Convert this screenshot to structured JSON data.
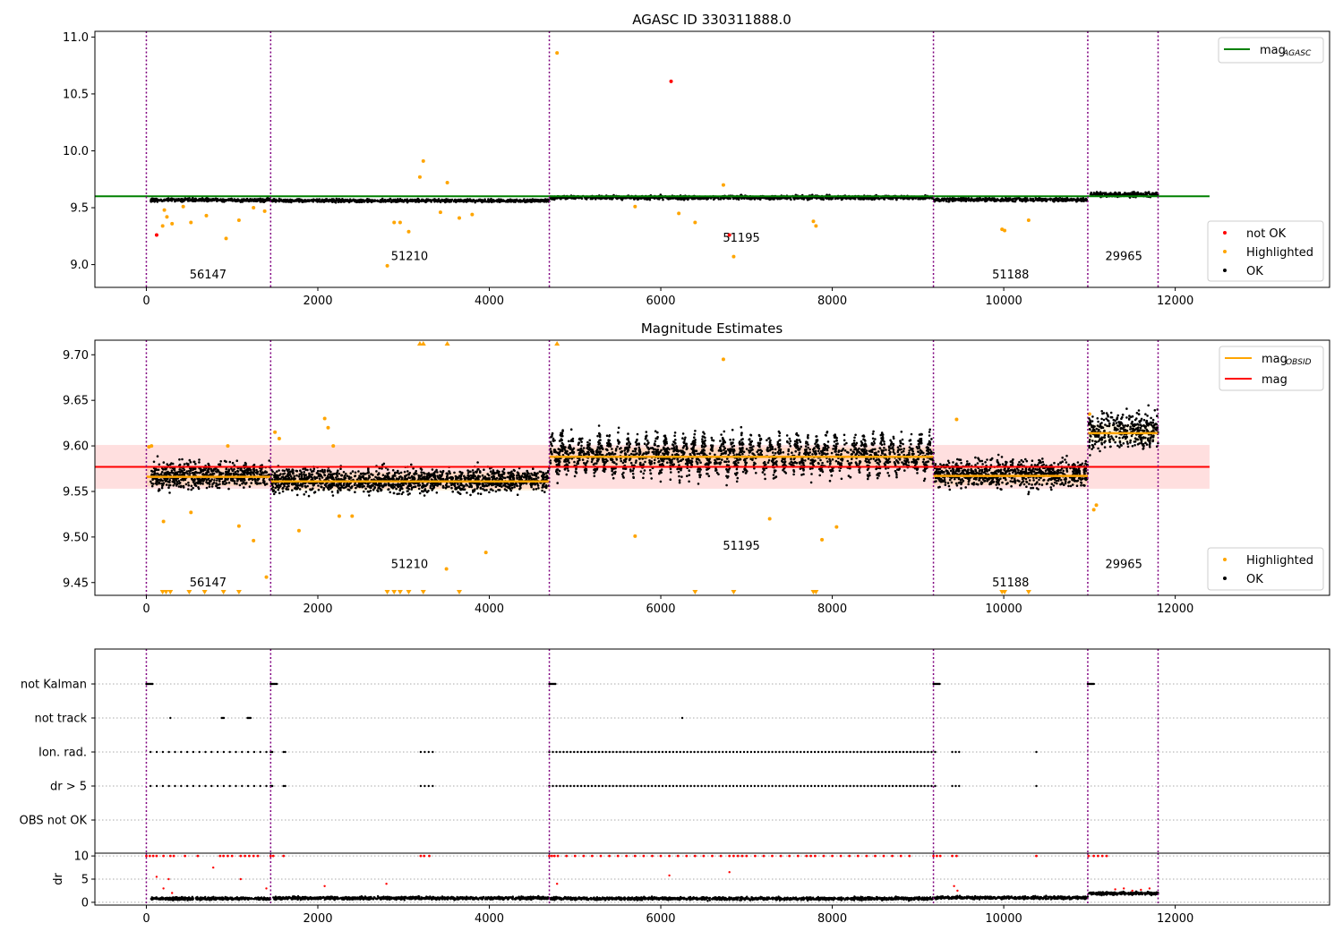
{
  "figure_title": "AGASC ID 330311888.0",
  "chart_data": [
    {
      "type": "scatter",
      "title": "",
      "xlim": [
        -600,
        13800
      ],
      "ylim": [
        8.8,
        11.05
      ],
      "xticks": [
        0,
        2000,
        4000,
        6000,
        8000,
        10000,
        12000
      ],
      "yticks": [
        9.0,
        9.5,
        10.0,
        10.5,
        11.0
      ],
      "ytick_labels": [
        "9.0",
        "9.5",
        "10.0",
        "10.5",
        "11.0"
      ],
      "obsid_boundaries": [
        0,
        1450,
        4700,
        9180,
        10980,
        11800
      ],
      "obsid_labels": [
        {
          "label": "56147",
          "x": 720,
          "y": 8.88
        },
        {
          "label": "51210",
          "x": 3070,
          "y": 9.04
        },
        {
          "label": "51195",
          "x": 6940,
          "y": 9.2
        },
        {
          "label": "51188",
          "x": 10080,
          "y": 8.88
        },
        {
          "label": "29965",
          "x": 11400,
          "y": 9.04
        }
      ],
      "mag_agasc": {
        "value": 9.6,
        "x": [
          -600,
          12400
        ],
        "color": "#008000"
      },
      "series": [
        {
          "name": "not OK",
          "color": "#ff0000",
          "points": [
            [
              120,
              9.26
            ],
            [
              6120,
              10.61
            ],
            [
              6800,
              9.26
            ]
          ]
        },
        {
          "name": "Highlighted",
          "color": "#ffa500",
          "points": [
            [
              190,
              9.34
            ],
            [
              210,
              9.48
            ],
            [
              240,
              9.42
            ],
            [
              300,
              9.36
            ],
            [
              430,
              9.51
            ],
            [
              520,
              9.37
            ],
            [
              700,
              9.43
            ],
            [
              930,
              9.23
            ],
            [
              1080,
              9.39
            ],
            [
              1250,
              9.5
            ],
            [
              1380,
              9.47
            ],
            [
              2810,
              8.99
            ],
            [
              2890,
              9.37
            ],
            [
              2960,
              9.37
            ],
            [
              3060,
              9.29
            ],
            [
              3190,
              9.77
            ],
            [
              3230,
              9.91
            ],
            [
              3430,
              9.46
            ],
            [
              3510,
              9.72
            ],
            [
              3650,
              9.41
            ],
            [
              3800,
              9.44
            ],
            [
              4790,
              10.86
            ],
            [
              5700,
              9.51
            ],
            [
              6210,
              9.45
            ],
            [
              6400,
              9.37
            ],
            [
              6730,
              9.7
            ],
            [
              6850,
              9.07
            ],
            [
              7780,
              9.38
            ],
            [
              7810,
              9.34
            ],
            [
              9980,
              9.31
            ],
            [
              10010,
              9.3
            ],
            [
              10290,
              9.39
            ]
          ]
        },
        {
          "name": "OK",
          "color": "#000000",
          "segments": [
            {
              "x": [
                50,
                1450
              ],
              "mean": 9.568,
              "spread": 0.014
            },
            {
              "x": [
                1460,
                4700
              ],
              "mean": 9.562,
              "spread": 0.013
            },
            {
              "x": [
                4710,
                9180
              ],
              "mean": 9.59,
              "spread": 0.016
            },
            {
              "x": [
                9190,
                10980
              ],
              "mean": 9.57,
              "spread": 0.015
            },
            {
              "x": [
                10990,
                11800
              ],
              "mean": 9.617,
              "spread": 0.02
            }
          ]
        }
      ],
      "legends": [
        {
          "placement": "top-right",
          "entries": [
            {
              "label": "mag",
              "sub": "AGASC",
              "marker": "line",
              "color": "#008000"
            }
          ]
        },
        {
          "placement": "lower-right",
          "entries": [
            {
              "label": "not OK",
              "marker": "dot",
              "color": "#ff0000"
            },
            {
              "label": "Highlighted",
              "marker": "dot",
              "color": "#ffa500"
            },
            {
              "label": "OK",
              "marker": "dot",
              "color": "#000000"
            }
          ]
        }
      ]
    },
    {
      "type": "scatter",
      "title": "Magnitude Estimates",
      "xlim": [
        -600,
        13800
      ],
      "ylim": [
        9.436,
        9.716
      ],
      "xticks": [
        0,
        2000,
        4000,
        6000,
        8000,
        10000,
        12000
      ],
      "yticks": [
        9.45,
        9.5,
        9.55,
        9.6,
        9.65,
        9.7
      ],
      "ytick_labels": [
        "9.45",
        "9.50",
        "9.55",
        "9.60",
        "9.65",
        "9.70"
      ],
      "obsid_boundaries": [
        0,
        1450,
        4700,
        9180,
        10980,
        11800
      ],
      "obsid_labels": [
        {
          "label": "56147",
          "x": 720,
          "y": 9.446
        },
        {
          "label": "51210",
          "x": 3070,
          "y": 9.466
        },
        {
          "label": "51195",
          "x": 6940,
          "y": 9.486
        },
        {
          "label": "51188",
          "x": 10080,
          "y": 9.446
        },
        {
          "label": "29965",
          "x": 11400,
          "y": 9.466
        }
      ],
      "mag": {
        "value": 9.577,
        "band": [
          9.553,
          9.601
        ],
        "x": [
          -600,
          12400
        ],
        "color": "#ff0000",
        "band_color": "#ffd7d7"
      },
      "mag_obsid": [
        {
          "x": [
            0,
            1450
          ],
          "value": 9.566
        },
        {
          "x": [
            1450,
            4700
          ],
          "value": 9.561
        },
        {
          "x": [
            4700,
            9180
          ],
          "value": 9.588
        },
        {
          "x": [
            9180,
            10980
          ],
          "value": 9.567
        },
        {
          "x": [
            10980,
            11800
          ],
          "value": 9.614
        }
      ],
      "series": [
        {
          "name": "Highlighted",
          "color": "#ffa500",
          "points": [
            [
              30,
              9.599
            ],
            [
              60,
              9.6
            ],
            [
              200,
              9.517
            ],
            [
              520,
              9.527
            ],
            [
              950,
              9.6
            ],
            [
              1080,
              9.512
            ],
            [
              1250,
              9.496
            ],
            [
              1400,
              9.456
            ],
            [
              1500,
              9.615
            ],
            [
              1550,
              9.608
            ],
            [
              1780,
              9.507
            ],
            [
              2080,
              9.63
            ],
            [
              2120,
              9.62
            ],
            [
              2180,
              9.6
            ],
            [
              2250,
              9.523
            ],
            [
              2400,
              9.523
            ],
            [
              3500,
              9.465
            ],
            [
              3960,
              9.483
            ],
            [
              5700,
              9.501
            ],
            [
              6730,
              9.695
            ],
            [
              7270,
              9.52
            ],
            [
              7880,
              9.497
            ],
            [
              8050,
              9.511
            ],
            [
              9450,
              9.629
            ],
            [
              11000,
              9.635
            ],
            [
              11050,
              9.53
            ],
            [
              11080,
              9.535
            ]
          ],
          "below_axis": [
            190,
            230,
            280,
            500,
            680,
            900,
            1080,
            2810,
            2890,
            2960,
            3060,
            3230,
            3650,
            6400,
            6850,
            7780,
            7810,
            9980,
            10010,
            10290
          ],
          "above_axis": [
            3190,
            3230,
            3510,
            4790
          ]
        },
        {
          "name": "OK",
          "color": "#000000",
          "segments": [
            {
              "x": [
                50,
                1450
              ],
              "mean": 9.568,
              "spread": 0.014
            },
            {
              "x": [
                1460,
                4700
              ],
              "mean": 9.562,
              "spread": 0.013
            },
            {
              "x": [
                4710,
                9180
              ],
              "mean": 9.59,
              "spread": 0.016,
              "oscillating": true
            },
            {
              "x": [
                9190,
                10980
              ],
              "mean": 9.57,
              "spread": 0.015
            },
            {
              "x": [
                10990,
                11800
              ],
              "mean": 9.617,
              "spread": 0.02
            }
          ]
        }
      ],
      "legends": [
        {
          "placement": "top-right",
          "entries": [
            {
              "label": "mag",
              "sub": "OBSID",
              "marker": "line",
              "color": "#ffa500"
            },
            {
              "label": "mag",
              "sub": "",
              "marker": "line",
              "color": "#ff0000"
            }
          ]
        },
        {
          "placement": "lower-right",
          "entries": [
            {
              "label": "Highlighted",
              "marker": "dot",
              "color": "#ffa500"
            },
            {
              "label": "OK",
              "marker": "dot",
              "color": "#000000"
            }
          ]
        }
      ]
    },
    {
      "type": "scatter",
      "title": "",
      "xlim": [
        -600,
        13800
      ],
      "xticks": [
        0,
        2000,
        4000,
        6000,
        8000,
        10000,
        12000
      ],
      "flag_rows": [
        "not Kalman",
        "not track",
        "Ion. rad.",
        "dr > 5",
        "OBS not OK"
      ],
      "flags": {
        "not Kalman": [
          [
            0,
            80
          ],
          [
            1450,
            1530
          ],
          [
            4700,
            4780
          ],
          [
            9180,
            9260
          ],
          [
            10980,
            11060
          ]
        ],
        "not track": [
          [
            280,
            290
          ],
          [
            880,
            910
          ],
          [
            1180,
            1220
          ],
          [
            6250,
            6260
          ]
        ],
        "Ion. rad.": [
          [
            50,
            1400,
            20
          ],
          [
            1450,
            1470,
            3
          ],
          [
            1600,
            1620,
            2
          ],
          [
            3200,
            3340,
            4
          ],
          [
            4700,
            9200,
            110
          ],
          [
            9400,
            9480,
            3
          ],
          [
            10380,
            10400,
            1
          ]
        ],
        "dr > 5": [
          [
            50,
            1400,
            20
          ],
          [
            1450,
            1470,
            3
          ],
          [
            1600,
            1620,
            2
          ],
          [
            3200,
            3340,
            4
          ],
          [
            4700,
            9200,
            110
          ],
          [
            9400,
            9480,
            3
          ],
          [
            10380,
            10400,
            1
          ]
        ],
        "OBS not OK": []
      },
      "dr_ylabel": "dr",
      "dr_yticks": [
        0,
        5,
        10
      ],
      "dr_ylim": [
        -0.6,
        10.6
      ]
    }
  ]
}
